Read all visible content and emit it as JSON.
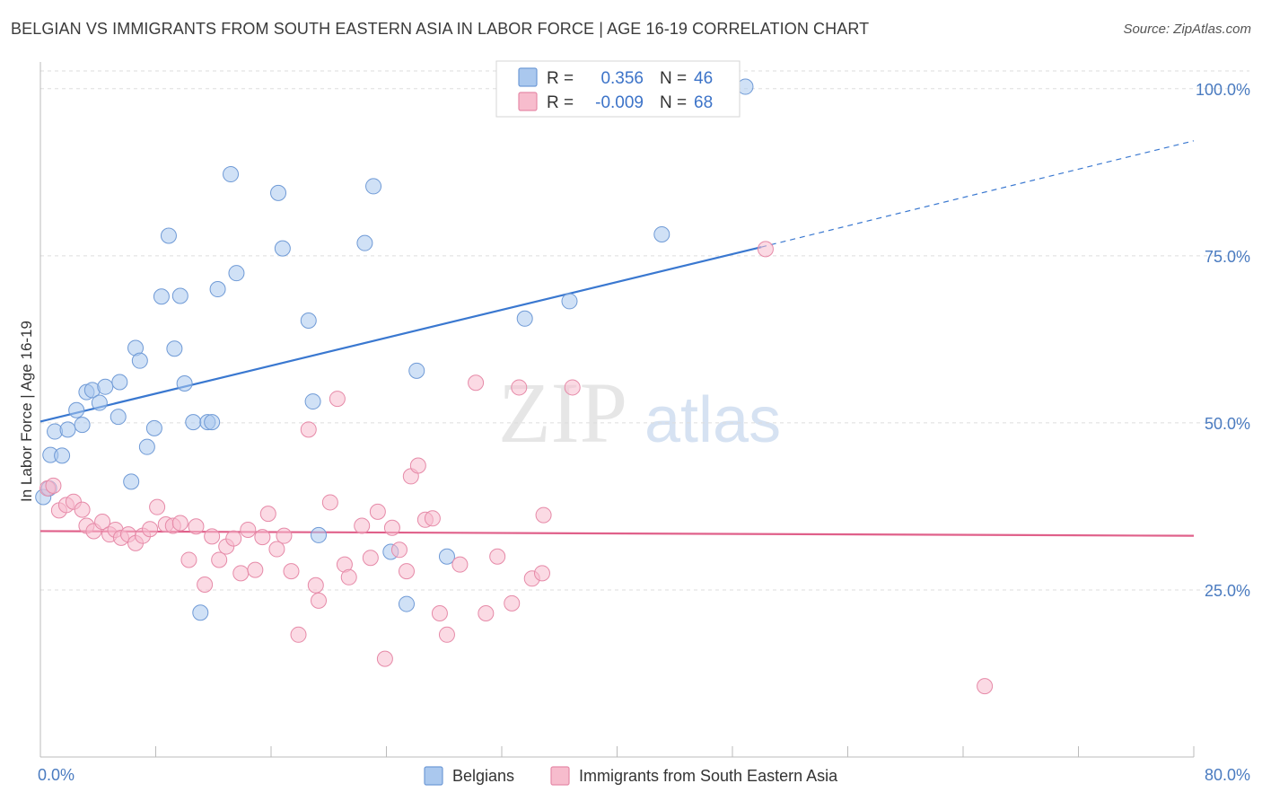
{
  "title": "BELGIAN VS IMMIGRANTS FROM SOUTH EASTERN ASIA IN LABOR FORCE | AGE 16-19 CORRELATION CHART",
  "source": "Source: ZipAtlas.com",
  "watermark": {
    "zip": "ZIP",
    "atlas": "atlas"
  },
  "colors": {
    "blue_fill": "#aac8ee",
    "blue_stroke": "#6f9ad6",
    "blue_line": "#3a78d0",
    "pink_fill": "#f7bccd",
    "pink_stroke": "#e68aa8",
    "pink_line": "#e0608a",
    "grid": "#dddddd",
    "tick_text": "#4a7bc0"
  },
  "chart_data": {
    "type": "scatter",
    "ylabel": "In Labor Force | Age 16-19",
    "xlim": [
      0,
      80
    ],
    "ylim": [
      0,
      104
    ],
    "x_tick_labels": [
      "0.0%",
      "80.0%"
    ],
    "y_ticks": [
      25,
      50,
      75,
      100
    ],
    "y_tick_labels": [
      "25.0%",
      "50.0%",
      "75.0%",
      "100.0%"
    ],
    "grid": true,
    "legend_placement": "top-center",
    "series": [
      {
        "name": "Belgians",
        "r_label": "R =",
        "r_value": "0.356",
        "n_label": "N =",
        "n_value": "46",
        "trend": {
          "x0": 0,
          "y0": 50.2,
          "x1": 50,
          "y1": 76.3,
          "dashed_to_x": 80,
          "dashed_to_y": 92.2
        },
        "points": [
          [
            0.2,
            38.9
          ],
          [
            0.6,
            40.2
          ],
          [
            0.7,
            45.2
          ],
          [
            1.0,
            48.7
          ],
          [
            1.5,
            45.1
          ],
          [
            1.9,
            49.0
          ],
          [
            2.5,
            51.9
          ],
          [
            2.9,
            49.7
          ],
          [
            3.2,
            54.6
          ],
          [
            3.6,
            54.9
          ],
          [
            4.1,
            53.0
          ],
          [
            4.5,
            55.4
          ],
          [
            5.5,
            56.1
          ],
          [
            5.4,
            50.9
          ],
          [
            6.3,
            41.2
          ],
          [
            6.6,
            61.2
          ],
          [
            6.9,
            59.3
          ],
          [
            7.4,
            46.4
          ],
          [
            7.9,
            49.2
          ],
          [
            8.4,
            68.9
          ],
          [
            8.9,
            78.0
          ],
          [
            9.3,
            61.1
          ],
          [
            9.7,
            69.0
          ],
          [
            10.0,
            55.9
          ],
          [
            10.6,
            50.1
          ],
          [
            11.1,
            21.6
          ],
          [
            11.6,
            50.1
          ],
          [
            11.9,
            50.1
          ],
          [
            12.3,
            70.0
          ],
          [
            13.2,
            87.2
          ],
          [
            13.6,
            72.4
          ],
          [
            16.5,
            84.4
          ],
          [
            16.8,
            76.1
          ],
          [
            18.6,
            65.3
          ],
          [
            18.9,
            53.2
          ],
          [
            19.3,
            33.2
          ],
          [
            22.5,
            76.9
          ],
          [
            23.1,
            85.4
          ],
          [
            24.3,
            30.7
          ],
          [
            25.4,
            22.9
          ],
          [
            26.1,
            57.8
          ],
          [
            28.2,
            30.0
          ],
          [
            33.6,
            65.6
          ],
          [
            36.7,
            68.2
          ],
          [
            43.1,
            78.2
          ],
          [
            48.9,
            100.3
          ]
        ]
      },
      {
        "name": "Immigrants from South Eastern Asia",
        "r_label": "R =",
        "r_value": "-0.009",
        "n_label": "N =",
        "n_value": "68",
        "trend": {
          "x0": 0,
          "y0": 33.8,
          "x1": 80,
          "y1": 33.1
        },
        "points": [
          [
            0.5,
            40.2
          ],
          [
            0.9,
            40.6
          ],
          [
            1.3,
            36.9
          ],
          [
            1.8,
            37.7
          ],
          [
            2.3,
            38.2
          ],
          [
            2.9,
            37.0
          ],
          [
            3.2,
            34.6
          ],
          [
            3.7,
            33.8
          ],
          [
            4.3,
            35.2
          ],
          [
            4.8,
            33.3
          ],
          [
            5.2,
            34.0
          ],
          [
            5.6,
            32.8
          ],
          [
            6.1,
            33.3
          ],
          [
            6.6,
            32.0
          ],
          [
            7.1,
            33.1
          ],
          [
            7.6,
            34.1
          ],
          [
            8.1,
            37.4
          ],
          [
            8.7,
            34.8
          ],
          [
            9.2,
            34.6
          ],
          [
            9.7,
            35.0
          ],
          [
            10.3,
            29.5
          ],
          [
            10.8,
            34.5
          ],
          [
            11.4,
            25.8
          ],
          [
            11.9,
            33.0
          ],
          [
            12.4,
            29.5
          ],
          [
            12.9,
            31.5
          ],
          [
            13.4,
            32.7
          ],
          [
            13.9,
            27.5
          ],
          [
            14.4,
            34.0
          ],
          [
            14.9,
            28.0
          ],
          [
            15.4,
            32.9
          ],
          [
            15.8,
            36.4
          ],
          [
            16.4,
            31.1
          ],
          [
            16.9,
            33.1
          ],
          [
            17.4,
            27.8
          ],
          [
            17.9,
            18.3
          ],
          [
            18.6,
            49.0
          ],
          [
            19.1,
            25.7
          ],
          [
            19.3,
            23.4
          ],
          [
            20.1,
            38.1
          ],
          [
            20.6,
            53.6
          ],
          [
            21.1,
            28.8
          ],
          [
            21.4,
            26.9
          ],
          [
            22.3,
            34.6
          ],
          [
            22.9,
            29.8
          ],
          [
            23.4,
            36.7
          ],
          [
            23.9,
            14.7
          ],
          [
            24.4,
            34.3
          ],
          [
            24.9,
            31.0
          ],
          [
            25.4,
            27.8
          ],
          [
            25.7,
            42.0
          ],
          [
            26.2,
            43.6
          ],
          [
            26.7,
            35.5
          ],
          [
            27.2,
            35.7
          ],
          [
            27.7,
            21.5
          ],
          [
            28.2,
            18.3
          ],
          [
            29.1,
            28.8
          ],
          [
            30.2,
            56.0
          ],
          [
            30.9,
            21.5
          ],
          [
            31.7,
            30.0
          ],
          [
            32.7,
            23.0
          ],
          [
            33.2,
            55.3
          ],
          [
            34.1,
            26.7
          ],
          [
            34.9,
            36.2
          ],
          [
            36.9,
            55.3
          ],
          [
            50.3,
            76.0
          ],
          [
            65.5,
            10.6
          ],
          [
            34.8,
            27.5
          ]
        ]
      }
    ]
  }
}
